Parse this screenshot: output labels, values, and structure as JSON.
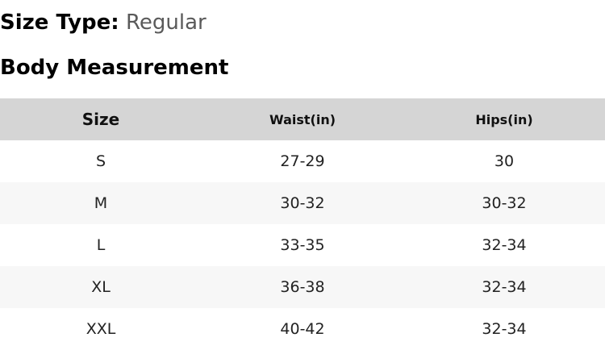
{
  "size_type": {
    "label": "Size Type:",
    "value": "Regular"
  },
  "heading": "Body Measurement",
  "table": {
    "headers": [
      "Size",
      "Waist(in)",
      "Hips(in)"
    ],
    "rows": [
      [
        "S",
        "27-29",
        "30"
      ],
      [
        "M",
        "30-32",
        "30-32"
      ],
      [
        "L",
        "33-35",
        "32-34"
      ],
      [
        "XL",
        "36-38",
        "32-34"
      ],
      [
        "XXL",
        "40-42",
        "32-34"
      ]
    ]
  }
}
